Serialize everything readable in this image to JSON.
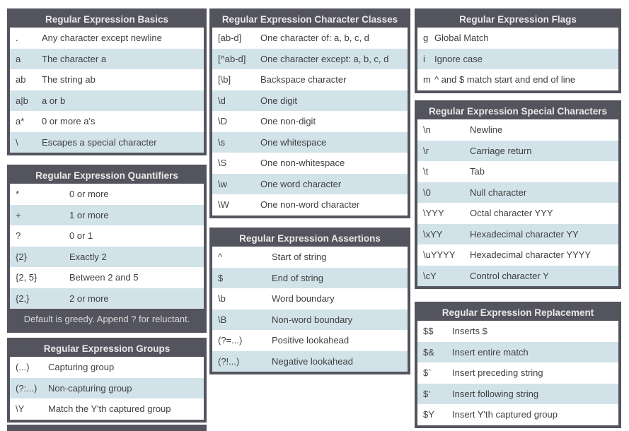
{
  "colors": {
    "table_border": "#54545f",
    "header_bg": "#54545f",
    "header_text": "#e8e8e8",
    "row_bg": "#ffffff",
    "row_alt_bg": "#d2e2e9",
    "body_text": "#3f3f3f"
  },
  "tables": {
    "basics": {
      "title": "Regular Expression Basics",
      "rows": [
        [
          ".",
          "Any character except newline"
        ],
        [
          "a",
          "The character a"
        ],
        [
          "ab",
          "The string ab"
        ],
        [
          "a|b",
          "a or b"
        ],
        [
          "a*",
          "0 or more a's"
        ],
        [
          "\\",
          "Escapes a special character"
        ]
      ]
    },
    "quantifiers": {
      "title": "Regular Expression Quantifiers",
      "rows": [
        [
          "*",
          "0 or more"
        ],
        [
          "+",
          "1 or more"
        ],
        [
          "?",
          "0 or 1"
        ],
        [
          "{2}",
          "Exactly 2"
        ],
        [
          "{2, 5}",
          "Between 2 and 5"
        ],
        [
          "{2,}",
          "2 or more"
        ]
      ],
      "footer": "Default is greedy. Append ? for reluctant."
    },
    "groups": {
      "title": "Regular Expression Groups",
      "rows": [
        [
          "(...)",
          "Capturing group"
        ],
        [
          "(?:...)",
          "Non-capturing group"
        ],
        [
          "\\Y",
          "Match the Y'th captured group"
        ]
      ]
    },
    "character_classes": {
      "title": "Regular Expression Character Classes",
      "rows": [
        [
          "[ab-d]",
          "One character of: a, b, c, d"
        ],
        [
          "[^ab-d]",
          "One character except: a, b, c, d"
        ],
        [
          "[\\b]",
          "Backspace character"
        ],
        [
          "\\d",
          "One digit"
        ],
        [
          "\\D",
          "One non-digit"
        ],
        [
          "\\s",
          "One whitespace"
        ],
        [
          "\\S",
          "One non-whitespace"
        ],
        [
          "\\w",
          "One word character"
        ],
        [
          "\\W",
          "One non-word character"
        ]
      ]
    },
    "assertions": {
      "title": "Regular Expression Assertions",
      "rows": [
        [
          "^",
          "Start of string"
        ],
        [
          "$",
          "End of string"
        ],
        [
          "\\b",
          "Word boundary"
        ],
        [
          "\\B",
          "Non-word boundary"
        ],
        [
          "(?=...)",
          "Positive lookahead"
        ],
        [
          "(?!...)",
          "Negative lookahead"
        ]
      ]
    },
    "flags": {
      "title": "Regular Expression Flags",
      "rows": [
        [
          "g",
          "Global Match"
        ],
        [
          "i",
          "Ignore case"
        ],
        [
          "m",
          "^ and $ match start and end of line"
        ]
      ]
    },
    "special_characters": {
      "title": "Regular Expression Special Characters",
      "rows": [
        [
          "\\n",
          "Newline"
        ],
        [
          "\\r",
          "Carriage return"
        ],
        [
          "\\t",
          "Tab"
        ],
        [
          "\\0",
          "Null character"
        ],
        [
          "\\YYY",
          "Octal character YYY"
        ],
        [
          "\\xYY",
          "Hexadecimal character YY"
        ],
        [
          "\\uYYYY",
          "Hexadecimal character YYYY"
        ],
        [
          "\\cY",
          "Control character Y"
        ]
      ]
    },
    "replacement": {
      "title": "Regular Expression Replacement",
      "rows": [
        [
          "$$",
          "Inserts $"
        ],
        [
          "$&",
          "Insert entire match"
        ],
        [
          "$`",
          "Insert preceding string"
        ],
        [
          "$'",
          "Insert following string"
        ],
        [
          "$Y",
          "Insert Y'th captured group"
        ]
      ]
    }
  }
}
